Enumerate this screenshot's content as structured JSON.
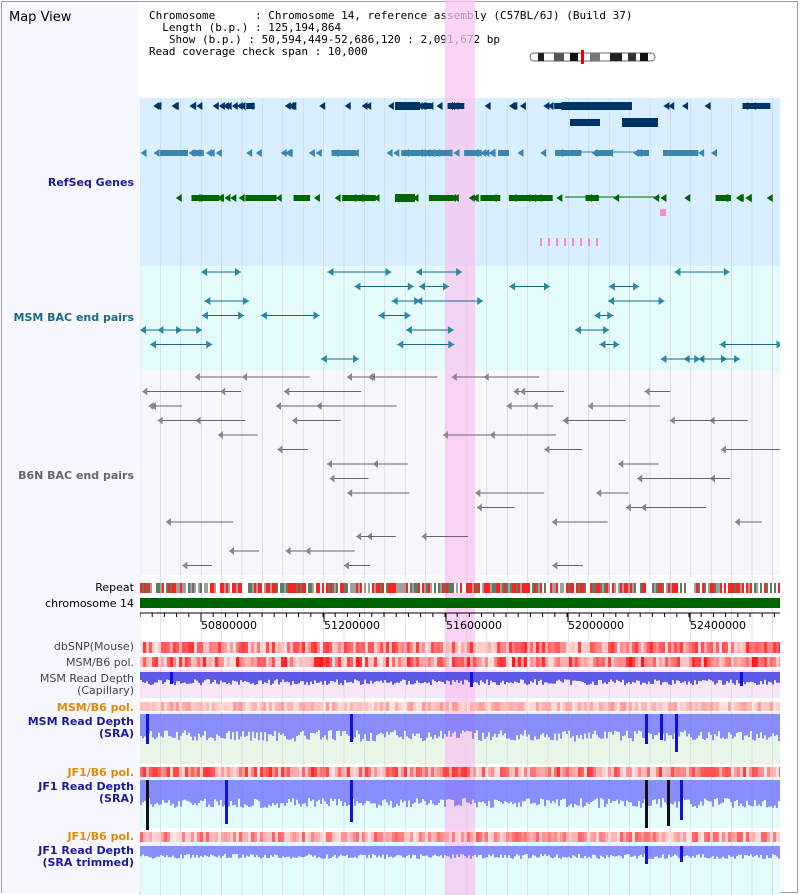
{
  "view_title": "Map View",
  "info": {
    "chromosome_key": "Chromosome",
    "chromosome_val": "Chromosome 14, reference assembly (C57BL/6J) (Build 37)",
    "length_key": "Length (b.p.)",
    "length_val": "125,194,864",
    "show_key": "Show (b.p.)",
    "show_val": "50,594,449-52,686,120 : 2,091,672 bp",
    "coverage_key": "Read coverage check span",
    "coverage_val": "10,000"
  },
  "tracks": {
    "refseq": "RefSeq Genes",
    "msm_bac": "MSM BAC end pairs",
    "b6n_bac": "B6N BAC end pairs",
    "repeat": "Repeat",
    "chromosome": "chromosome 14",
    "dbsnp": "dbSNP(Mouse)",
    "msm_b6_pol_1": "MSM/B6 pol.",
    "msm_depth_cap": "MSM Read Depth\n(Capillary)",
    "msm_b6_pol_2": "MSM/B6 pol.",
    "msm_depth_sra": "MSM Read Depth\n(SRA)",
    "jf1_b6_pol_1": "JF1/B6 pol.",
    "jf1_depth_sra": "JF1 Read Depth\n(SRA)",
    "jf1_b6_pol_2": "JF1/B6 pol.",
    "jf1_depth_trim": "JF1 Read Depth\n(SRA trimmed)"
  },
  "axis": {
    "ticks": [
      "50800000",
      "51200000",
      "51600000",
      "52000000",
      "52400000"
    ]
  },
  "colors": {
    "highlight": "#f7c6ef",
    "refseq_bg": "#d8efff",
    "bac_bg": "#e4fbfb",
    "chrom_green": "#006400",
    "depth_blue": "#3333ff",
    "pol_red": "#ff2a2a"
  }
}
